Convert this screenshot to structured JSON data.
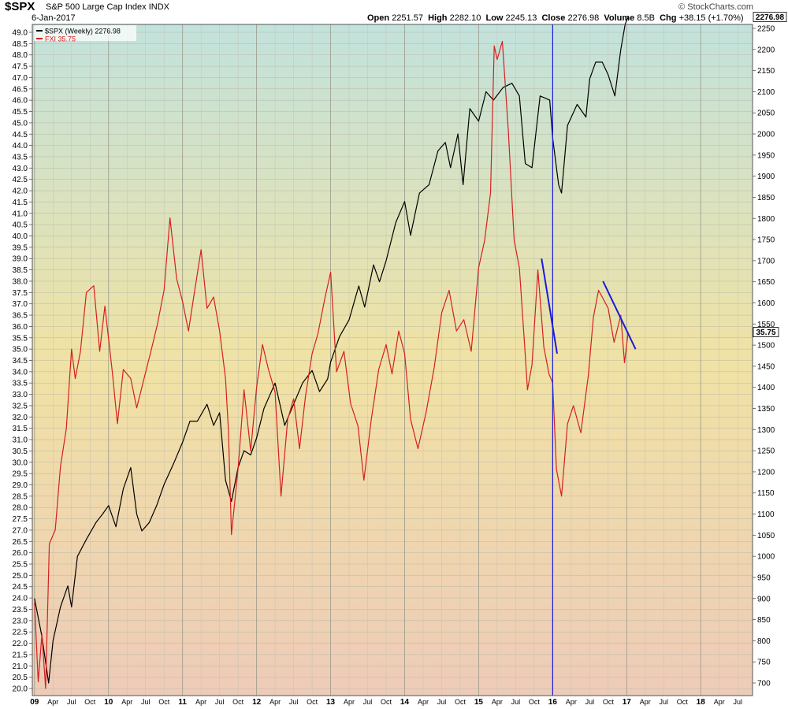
{
  "header": {
    "symbol": "$SPX",
    "name": "S&P 500 Large Cap Index",
    "exchange": "INDX",
    "date": "6-Jan-2017",
    "open_label": "Open",
    "open": "2251.57",
    "high_label": "High",
    "high": "2282.10",
    "low_label": "Low",
    "low": "2245.13",
    "close_label": "Close",
    "close": "2276.98",
    "volume_label": "Volume",
    "volume": "8.5B",
    "chg_label": "Chg",
    "chg": "+38.15 (+1.70%)",
    "brand": "© StockCharts.com"
  },
  "legend": [
    {
      "label": "$SPX (Weekly) 2276.98",
      "color": "#000000"
    },
    {
      "label": "FXI 35.75",
      "color": "#d42020"
    }
  ],
  "last_value_labels": {
    "spx": "2276.98",
    "fxi": "35.75"
  },
  "colors": {
    "spx": "#000000",
    "fxi": "#d42020",
    "annotation": "#1a1adc",
    "bg_top": "#c2e2dc",
    "bg_mid": "#f0e2a4",
    "bg_bottom": "#eecbb8"
  },
  "chart_data": {
    "type": "line",
    "x_range": [
      "2009-01",
      "2018-09"
    ],
    "left_axis": {
      "series": "FXI",
      "ylim": [
        20.0,
        49.0
      ],
      "ticks": [
        "20.0",
        "20.5",
        "21.0",
        "21.5",
        "22.0",
        "22.5",
        "23.0",
        "23.5",
        "24.0",
        "24.5",
        "25.0",
        "25.5",
        "26.0",
        "26.5",
        "27.0",
        "27.5",
        "28.0",
        "28.5",
        "29.0",
        "29.5",
        "30.0",
        "30.5",
        "31.0",
        "31.5",
        "32.0",
        "32.5",
        "33.0",
        "33.5",
        "34.0",
        "34.5",
        "35.0",
        "35.5",
        "36.0",
        "36.5",
        "37.0",
        "37.5",
        "38.0",
        "38.5",
        "39.0",
        "39.5",
        "40.0",
        "40.5",
        "41.0",
        "41.5",
        "42.0",
        "42.5",
        "43.0",
        "43.5",
        "44.0",
        "44.5",
        "45.0",
        "45.5",
        "46.0",
        "46.5",
        "47.0",
        "47.5",
        "48.0",
        "48.5",
        "49.0"
      ]
    },
    "right_axis": {
      "series": "$SPX",
      "ylim": [
        700,
        2250
      ],
      "ticks": [
        "700",
        "750",
        "800",
        "850",
        "900",
        "950",
        "1000",
        "1050",
        "1100",
        "1150",
        "1200",
        "1250",
        "1300",
        "1350",
        "1400",
        "1450",
        "1500",
        "1550",
        "1600",
        "1650",
        "1700",
        "1750",
        "1800",
        "1850",
        "1900",
        "1950",
        "2000",
        "2050",
        "2100",
        "2150",
        "2200",
        "2250"
      ]
    },
    "x_ticks": [
      {
        "label": "09",
        "t": 2009.0,
        "major": true
      },
      {
        "label": "Apr",
        "t": 2009.25
      },
      {
        "label": "Jul",
        "t": 2009.5
      },
      {
        "label": "Oct",
        "t": 2009.75
      },
      {
        "label": "10",
        "t": 2010.0,
        "major": true
      },
      {
        "label": "Apr",
        "t": 2010.25
      },
      {
        "label": "Jul",
        "t": 2010.5
      },
      {
        "label": "Oct",
        "t": 2010.75
      },
      {
        "label": "11",
        "t": 2011.0,
        "major": true
      },
      {
        "label": "Apr",
        "t": 2011.25
      },
      {
        "label": "Jul",
        "t": 2011.5
      },
      {
        "label": "Oct",
        "t": 2011.75
      },
      {
        "label": "12",
        "t": 2012.0,
        "major": true
      },
      {
        "label": "Apr",
        "t": 2012.25
      },
      {
        "label": "Jul",
        "t": 2012.5
      },
      {
        "label": "Oct",
        "t": 2012.75
      },
      {
        "label": "13",
        "t": 2013.0,
        "major": true
      },
      {
        "label": "Apr",
        "t": 2013.25
      },
      {
        "label": "Jul",
        "t": 2013.5
      },
      {
        "label": "Oct",
        "t": 2013.75
      },
      {
        "label": "14",
        "t": 2014.0,
        "major": true
      },
      {
        "label": "Apr",
        "t": 2014.25
      },
      {
        "label": "Jul",
        "t": 2014.5
      },
      {
        "label": "Oct",
        "t": 2014.75
      },
      {
        "label": "15",
        "t": 2015.0,
        "major": true
      },
      {
        "label": "Apr",
        "t": 2015.25
      },
      {
        "label": "Jul",
        "t": 2015.5
      },
      {
        "label": "Oct",
        "t": 2015.75
      },
      {
        "label": "16",
        "t": 2016.0,
        "major": true
      },
      {
        "label": "Apr",
        "t": 2016.25
      },
      {
        "label": "Jul",
        "t": 2016.5
      },
      {
        "label": "Oct",
        "t": 2016.75
      },
      {
        "label": "17",
        "t": 2017.0,
        "major": true
      },
      {
        "label": "Apr",
        "t": 2017.25
      },
      {
        "label": "Jul",
        "t": 2017.5
      },
      {
        "label": "Oct",
        "t": 2017.75
      },
      {
        "label": "18",
        "t": 2018.0,
        "major": true
      },
      {
        "label": "Apr",
        "t": 2018.25
      },
      {
        "label": "Jul",
        "t": 2018.5
      }
    ],
    "grid": true,
    "series": [
      {
        "name": "$SPX (Weekly)",
        "axis": "right",
        "color": "#000000",
        "points": [
          [
            2009.0,
            900
          ],
          [
            2009.1,
            810
          ],
          [
            2009.19,
            700
          ],
          [
            2009.25,
            800
          ],
          [
            2009.35,
            880
          ],
          [
            2009.45,
            930
          ],
          [
            2009.5,
            880
          ],
          [
            2009.58,
            1000
          ],
          [
            2009.7,
            1040
          ],
          [
            2009.83,
            1080
          ],
          [
            2009.92,
            1100
          ],
          [
            2010.0,
            1120
          ],
          [
            2010.1,
            1070
          ],
          [
            2010.2,
            1160
          ],
          [
            2010.3,
            1210
          ],
          [
            2010.38,
            1100
          ],
          [
            2010.45,
            1060
          ],
          [
            2010.55,
            1080
          ],
          [
            2010.65,
            1120
          ],
          [
            2010.75,
            1170
          ],
          [
            2010.88,
            1220
          ],
          [
            2011.0,
            1270
          ],
          [
            2011.1,
            1320
          ],
          [
            2011.2,
            1320
          ],
          [
            2011.33,
            1360
          ],
          [
            2011.42,
            1310
          ],
          [
            2011.5,
            1340
          ],
          [
            2011.58,
            1180
          ],
          [
            2011.66,
            1130
          ],
          [
            2011.75,
            1210
          ],
          [
            2011.83,
            1250
          ],
          [
            2011.92,
            1240
          ],
          [
            2012.0,
            1280
          ],
          [
            2012.1,
            1350
          ],
          [
            2012.25,
            1410
          ],
          [
            2012.38,
            1310
          ],
          [
            2012.5,
            1360
          ],
          [
            2012.62,
            1410
          ],
          [
            2012.75,
            1440
          ],
          [
            2012.85,
            1390
          ],
          [
            2012.96,
            1420
          ],
          [
            2013.0,
            1460
          ],
          [
            2013.12,
            1520
          ],
          [
            2013.25,
            1560
          ],
          [
            2013.38,
            1640
          ],
          [
            2013.46,
            1590
          ],
          [
            2013.58,
            1690
          ],
          [
            2013.66,
            1650
          ],
          [
            2013.75,
            1700
          ],
          [
            2013.88,
            1790
          ],
          [
            2014.0,
            1840
          ],
          [
            2014.08,
            1760
          ],
          [
            2014.2,
            1860
          ],
          [
            2014.33,
            1880
          ],
          [
            2014.45,
            1960
          ],
          [
            2014.55,
            1980
          ],
          [
            2014.62,
            1920
          ],
          [
            2014.72,
            2000
          ],
          [
            2014.79,
            1880
          ],
          [
            2014.88,
            2060
          ],
          [
            2015.0,
            2030
          ],
          [
            2015.1,
            2100
          ],
          [
            2015.2,
            2080
          ],
          [
            2015.33,
            2110
          ],
          [
            2015.45,
            2120
          ],
          [
            2015.55,
            2090
          ],
          [
            2015.63,
            1930
          ],
          [
            2015.72,
            1920
          ],
          [
            2015.83,
            2090
          ],
          [
            2015.96,
            2080
          ],
          [
            2016.0,
            1990
          ],
          [
            2016.08,
            1880
          ],
          [
            2016.12,
            1860
          ],
          [
            2016.2,
            2020
          ],
          [
            2016.33,
            2070
          ],
          [
            2016.45,
            2040
          ],
          [
            2016.5,
            2130
          ],
          [
            2016.58,
            2170
          ],
          [
            2016.67,
            2170
          ],
          [
            2016.75,
            2140
          ],
          [
            2016.84,
            2090
          ],
          [
            2016.92,
            2200
          ],
          [
            2016.98,
            2260
          ],
          [
            2017.02,
            2277
          ]
        ]
      },
      {
        "name": "FXI",
        "axis": "left",
        "color": "#d42020",
        "points": [
          [
            2009.0,
            23.8
          ],
          [
            2009.05,
            20.3
          ],
          [
            2009.1,
            22.4
          ],
          [
            2009.15,
            20.0
          ],
          [
            2009.2,
            26.4
          ],
          [
            2009.28,
            27.0
          ],
          [
            2009.35,
            29.8
          ],
          [
            2009.43,
            31.5
          ],
          [
            2009.5,
            35.0
          ],
          [
            2009.55,
            33.7
          ],
          [
            2009.62,
            34.9
          ],
          [
            2009.7,
            37.5
          ],
          [
            2009.8,
            37.8
          ],
          [
            2009.88,
            34.9
          ],
          [
            2009.95,
            36.9
          ],
          [
            2010.05,
            34.0
          ],
          [
            2010.12,
            31.7
          ],
          [
            2010.2,
            34.1
          ],
          [
            2010.3,
            33.7
          ],
          [
            2010.38,
            32.4
          ],
          [
            2010.48,
            33.7
          ],
          [
            2010.58,
            35.0
          ],
          [
            2010.66,
            36.1
          ],
          [
            2010.75,
            37.6
          ],
          [
            2010.83,
            40.8
          ],
          [
            2010.92,
            38.1
          ],
          [
            2011.0,
            37.1
          ],
          [
            2011.08,
            35.8
          ],
          [
            2011.15,
            37.3
          ],
          [
            2011.25,
            39.4
          ],
          [
            2011.33,
            36.8
          ],
          [
            2011.42,
            37.3
          ],
          [
            2011.5,
            35.8
          ],
          [
            2011.58,
            33.7
          ],
          [
            2011.62,
            31.4
          ],
          [
            2011.66,
            26.8
          ],
          [
            2011.75,
            29.7
          ],
          [
            2011.83,
            33.2
          ],
          [
            2011.92,
            30.5
          ],
          [
            2012.0,
            33.3
          ],
          [
            2012.08,
            35.2
          ],
          [
            2012.16,
            34.1
          ],
          [
            2012.25,
            33.1
          ],
          [
            2012.33,
            28.5
          ],
          [
            2012.42,
            31.9
          ],
          [
            2012.5,
            32.8
          ],
          [
            2012.58,
            30.6
          ],
          [
            2012.66,
            32.9
          ],
          [
            2012.75,
            34.8
          ],
          [
            2012.83,
            35.7
          ],
          [
            2012.92,
            37.2
          ],
          [
            2013.0,
            38.4
          ],
          [
            2013.08,
            34.0
          ],
          [
            2013.18,
            34.9
          ],
          [
            2013.27,
            32.6
          ],
          [
            2013.37,
            31.6
          ],
          [
            2013.45,
            29.2
          ],
          [
            2013.55,
            31.9
          ],
          [
            2013.65,
            34.1
          ],
          [
            2013.75,
            35.2
          ],
          [
            2013.83,
            33.9
          ],
          [
            2013.92,
            35.8
          ],
          [
            2014.0,
            34.8
          ],
          [
            2014.08,
            31.9
          ],
          [
            2014.18,
            30.6
          ],
          [
            2014.29,
            32.2
          ],
          [
            2014.4,
            34.2
          ],
          [
            2014.5,
            36.6
          ],
          [
            2014.6,
            37.6
          ],
          [
            2014.7,
            35.8
          ],
          [
            2014.8,
            36.3
          ],
          [
            2014.9,
            34.9
          ],
          [
            2015.0,
            38.6
          ],
          [
            2015.08,
            39.8
          ],
          [
            2015.16,
            41.9
          ],
          [
            2015.21,
            48.4
          ],
          [
            2015.25,
            47.8
          ],
          [
            2015.32,
            48.6
          ],
          [
            2015.4,
            44.7
          ],
          [
            2015.48,
            39.8
          ],
          [
            2015.55,
            38.6
          ],
          [
            2015.62,
            35.2
          ],
          [
            2015.66,
            33.2
          ],
          [
            2015.72,
            34.3
          ],
          [
            2015.8,
            38.5
          ],
          [
            2015.88,
            35.1
          ],
          [
            2015.95,
            33.9
          ],
          [
            2016.0,
            33.5
          ],
          [
            2016.05,
            29.7
          ],
          [
            2016.12,
            28.5
          ],
          [
            2016.2,
            31.7
          ],
          [
            2016.28,
            32.5
          ],
          [
            2016.38,
            31.3
          ],
          [
            2016.48,
            33.8
          ],
          [
            2016.55,
            36.4
          ],
          [
            2016.62,
            37.6
          ],
          [
            2016.67,
            37.3
          ],
          [
            2016.75,
            36.8
          ],
          [
            2016.83,
            35.3
          ],
          [
            2016.92,
            36.5
          ],
          [
            2016.97,
            34.4
          ],
          [
            2017.02,
            35.75
          ]
        ]
      }
    ],
    "annotations": [
      {
        "type": "vline",
        "t": 2016.0
      },
      {
        "type": "trendline",
        "from": [
          2015.85,
          39.0
        ],
        "to": [
          2016.06,
          34.8
        ]
      },
      {
        "type": "trendline",
        "from": [
          2016.68,
          38.0
        ],
        "to": [
          2017.12,
          35.0
        ]
      }
    ]
  }
}
